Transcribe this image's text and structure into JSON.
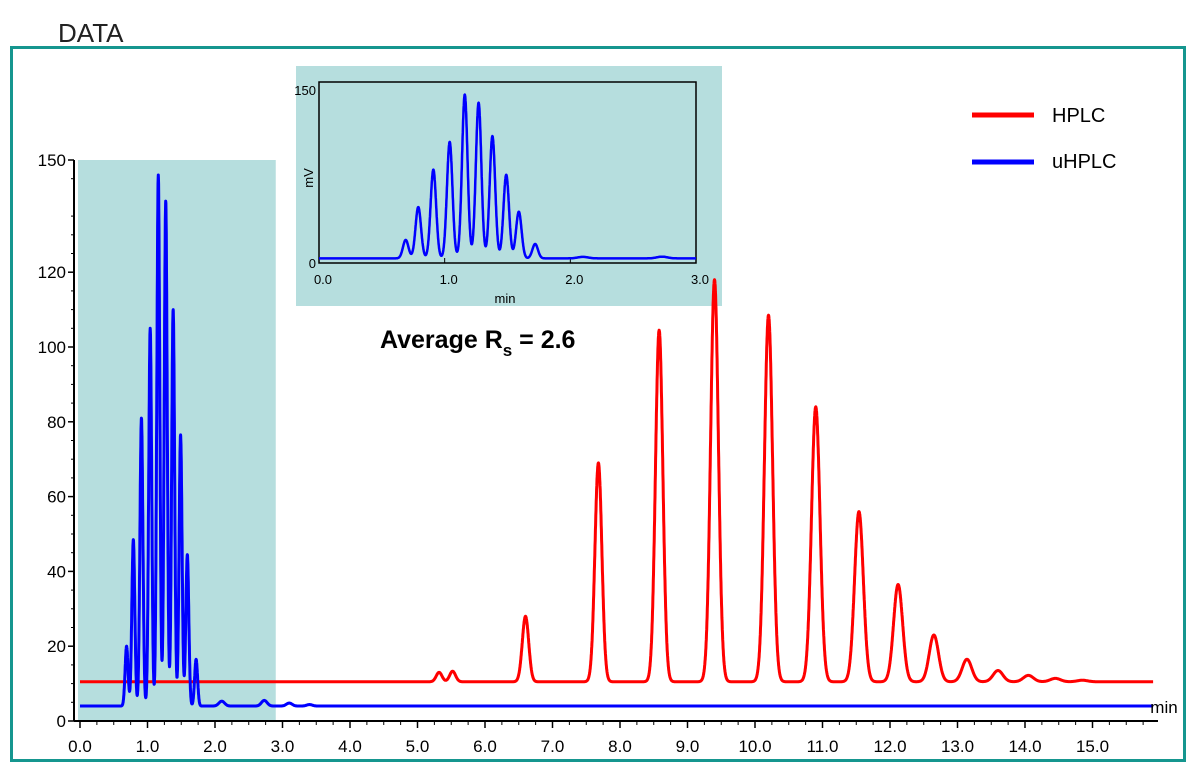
{
  "page": {
    "header_label": "DATA"
  },
  "chart_data": [
    {
      "id": "main",
      "type": "line",
      "title": "",
      "xlabel": "min",
      "ylabel": "",
      "xlim": [
        0,
        16
      ],
      "ylim": [
        0,
        150
      ],
      "x_ticks": [
        "0.0",
        "1.0",
        "2.0",
        "3.0",
        "4.0",
        "5.0",
        "6.0",
        "7.0",
        "8.0",
        "9.0",
        "10.0",
        "11.0",
        "12.0",
        "13.0",
        "14.0",
        "15.0"
      ],
      "y_ticks": [
        "0",
        "20",
        "40",
        "60",
        "80",
        "100",
        "120",
        "150"
      ],
      "highlight_region": {
        "x": [
          0,
          2.9
        ],
        "color": "#b6dede"
      },
      "legend": {
        "placement": "top-right",
        "entries": [
          {
            "name": "HPLC",
            "color": "#ff0000"
          },
          {
            "name": "uHPLC",
            "color": "#0000ff"
          }
        ]
      },
      "annotation": {
        "text": "Average R",
        "subscript": "s",
        "suffix": " = 2.6"
      },
      "series": [
        {
          "name": "HPLC",
          "color": "#ff0000",
          "baseline": 10.5,
          "peaks": [
            {
              "t": 5.32,
              "h": 2.5
            },
            {
              "t": 5.52,
              "h": 2.8
            },
            {
              "t": 6.6,
              "h": 17.5
            },
            {
              "t": 7.68,
              "h": 58.5
            },
            {
              "t": 8.58,
              "h": 94
            },
            {
              "t": 9.4,
              "h": 107.5
            },
            {
              "t": 10.2,
              "h": 98
            },
            {
              "t": 10.9,
              "h": 73.5
            },
            {
              "t": 11.54,
              "h": 45.5
            },
            {
              "t": 12.12,
              "h": 26
            },
            {
              "t": 12.65,
              "h": 12.5
            },
            {
              "t": 13.14,
              "h": 6
            },
            {
              "t": 13.6,
              "h": 3
            },
            {
              "t": 14.05,
              "h": 1.7
            },
            {
              "t": 14.45,
              "h": 0.9
            },
            {
              "t": 14.85,
              "h": 0.4
            }
          ]
        },
        {
          "name": "uHPLC",
          "color": "#0000ff",
          "baseline": 4,
          "peaks": [
            {
              "t": 0.69,
              "h": 16
            },
            {
              "t": 0.79,
              "h": 44.5
            },
            {
              "t": 0.91,
              "h": 77
            },
            {
              "t": 1.04,
              "h": 101
            },
            {
              "t": 1.16,
              "h": 142
            },
            {
              "t": 1.27,
              "h": 135
            },
            {
              "t": 1.38,
              "h": 106
            },
            {
              "t": 1.49,
              "h": 72.5
            },
            {
              "t": 1.59,
              "h": 40.5
            },
            {
              "t": 1.72,
              "h": 12.5
            },
            {
              "t": 2.1,
              "h": 1.3
            },
            {
              "t": 2.73,
              "h": 1.5
            },
            {
              "t": 3.1,
              "h": 0.8
            },
            {
              "t": 3.4,
              "h": 0.4
            }
          ]
        }
      ]
    },
    {
      "id": "inset",
      "type": "line",
      "title": "",
      "xlabel": "min",
      "ylabel": "mV",
      "xlim": [
        0,
        3
      ],
      "ylim": [
        0,
        150
      ],
      "x_ticks": [
        "0.0",
        "1.0",
        "2.0",
        "3.0"
      ],
      "y_ticks": [
        "0",
        "150"
      ],
      "series": [
        {
          "name": "uHPLC",
          "color": "#0000ff",
          "baseline": 4,
          "peaks": [
            {
              "t": 0.69,
              "h": 16
            },
            {
              "t": 0.79,
              "h": 44.5
            },
            {
              "t": 0.91,
              "h": 77
            },
            {
              "t": 1.04,
              "h": 101
            },
            {
              "t": 1.16,
              "h": 142
            },
            {
              "t": 1.27,
              "h": 135
            },
            {
              "t": 1.38,
              "h": 106
            },
            {
              "t": 1.49,
              "h": 72.5
            },
            {
              "t": 1.59,
              "h": 40.5
            },
            {
              "t": 1.72,
              "h": 12.5
            },
            {
              "t": 2.1,
              "h": 1.3
            },
            {
              "t": 2.73,
              "h": 1.5
            }
          ]
        }
      ]
    }
  ]
}
